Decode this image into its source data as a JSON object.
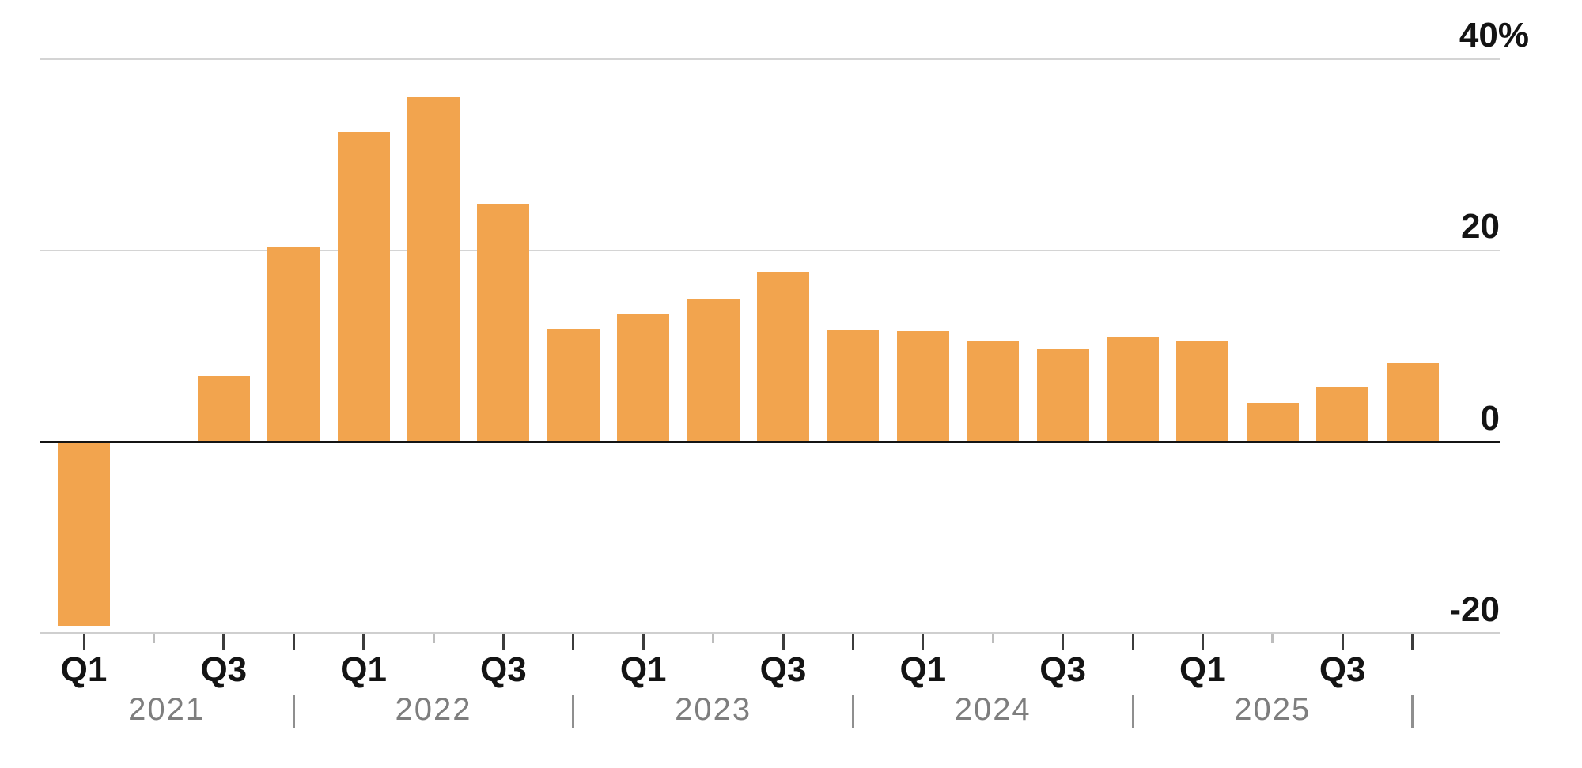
{
  "chart_data": {
    "type": "bar",
    "title": "",
    "categories": [
      "Q1 2021",
      "Q2 2021",
      "Q3 2021",
      "Q4 2021",
      "Q1 2022",
      "Q2 2022",
      "Q3 2022",
      "Q4 2022",
      "Q1 2023",
      "Q2 2023",
      "Q3 2023",
      "Q4 2023",
      "Q1 2024",
      "Q2 2024",
      "Q3 2024",
      "Q4 2024",
      "Q1 2025",
      "Q2 2025",
      "Q3 2025",
      "Q4 2025"
    ],
    "values": [
      -19.1,
      0,
      6.9,
      20.4,
      32.4,
      36.0,
      24.9,
      11.8,
      13.3,
      14.9,
      17.8,
      11.7,
      11.6,
      10.6,
      9.7,
      11.0,
      10.5,
      4.1,
      5.7,
      8.3
    ],
    "unit": "percent",
    "grid": true,
    "legend": "none",
    "y_axis": {
      "tick_values": [
        40,
        20,
        0,
        -20
      ],
      "tick_labels": [
        "40%",
        "20",
        "0",
        "-20"
      ],
      "range_shown": [
        -20,
        40
      ]
    },
    "x_axis": {
      "quarter_tick_labels": [
        "Q1",
        "",
        "Q3",
        "",
        "Q1",
        "",
        "Q3",
        "",
        "Q1",
        "",
        "Q3",
        "",
        "Q1",
        "",
        "Q3",
        "",
        "Q1",
        "",
        "Q3",
        ""
      ],
      "year_labels": [
        "2021",
        "2022",
        "2023",
        "2024",
        "2025"
      ]
    }
  },
  "colors": {
    "bar": "#F2A44E",
    "grid_line": "#D4D4D4",
    "zero_line": "#141414",
    "axis_line": "#CFCFCF",
    "tick_dark": "#3C3C3C",
    "tick_light": "#BDBDBD",
    "axis_text": "#141414",
    "year_text": "#7E7E7E",
    "year_separator": "#8F8F8F",
    "background": "#FFFFFF"
  }
}
